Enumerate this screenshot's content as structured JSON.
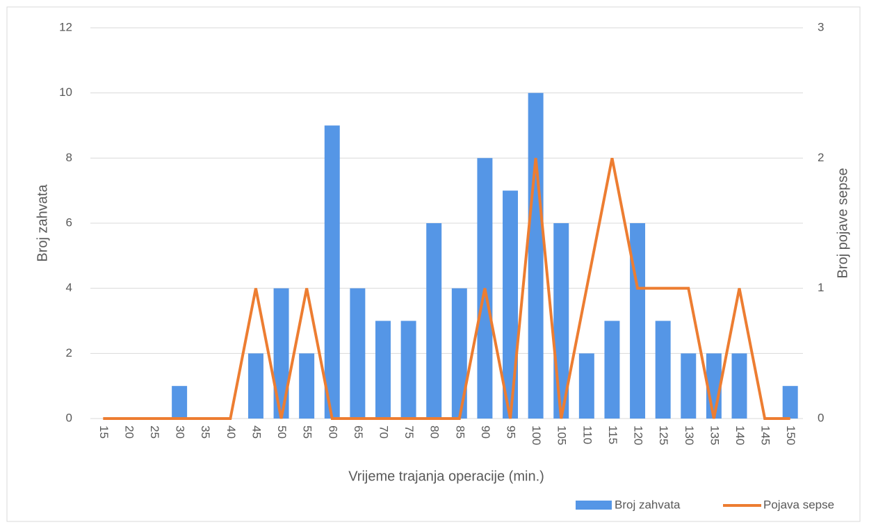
{
  "chart_data": {
    "type": "bar_line",
    "x_label": "Vrijeme trajanja operacije (min.)",
    "y_label": "Broj zahvata",
    "y2_label": "Broj pojave sepse",
    "categories": [
      "15",
      "20",
      "25",
      "30",
      "35",
      "40",
      "45",
      "50",
      "55",
      "60",
      "65",
      "70",
      "75",
      "80",
      "85",
      "90",
      "95",
      "100",
      "105",
      "110",
      "115",
      "120",
      "125",
      "130",
      "135",
      "140",
      "145",
      "150"
    ],
    "series": [
      {
        "name": "Broj zahvata",
        "color": "#5596e6",
        "kind": "bar",
        "values": [
          0,
          0,
          0,
          1,
          0,
          0,
          2,
          4,
          2,
          9,
          4,
          3,
          3,
          6,
          4,
          8,
          7,
          10,
          6,
          2,
          3,
          6,
          3,
          2,
          2,
          2,
          0,
          1
        ]
      },
      {
        "name": "Pojava sepse",
        "color": "#ed7d31",
        "kind": "line",
        "axis": "y2",
        "values": [
          0,
          0,
          0,
          0,
          0,
          0,
          1,
          0,
          1,
          0,
          0,
          0,
          0,
          0,
          0,
          1,
          0,
          2,
          0,
          1,
          2,
          1,
          1,
          1,
          0,
          1,
          0,
          0
        ]
      }
    ],
    "ylim": [
      0,
      12
    ],
    "yticks": [
      0,
      2,
      4,
      6,
      8,
      10,
      12
    ],
    "y2lim": [
      0,
      3
    ],
    "y2ticks": [
      0,
      1,
      2,
      3
    ],
    "grid": true,
    "legend": "bottom-right"
  }
}
